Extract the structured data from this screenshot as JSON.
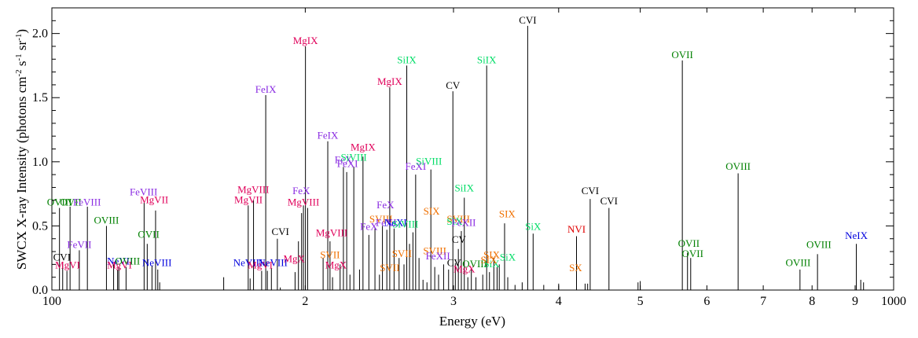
{
  "chart_data": {
    "type": "bar",
    "title": "",
    "xlabel": "Energy (eV)",
    "ylabel": "SWCX X-ray Intensity (photons cm-2 s-1 sr-1)",
    "ylabel_parts": {
      "prefix": "SWCX X-ray Intensity (photons cm",
      "exp1": "-2",
      "s": " s",
      "exp2": "-1",
      "sr": " sr",
      "exp3": "-1",
      "suffix": ")"
    },
    "x_scale": "log",
    "xlim": [
      100,
      1000
    ],
    "ylim": [
      0,
      2.2
    ],
    "grid": false,
    "x_ticks": [
      {
        "value": 100,
        "label": "100",
        "major": true
      },
      {
        "value": 200,
        "label": "2",
        "major": false
      },
      {
        "value": 300,
        "label": "3",
        "major": false
      },
      {
        "value": 400,
        "label": "4",
        "major": false
      },
      {
        "value": 500,
        "label": "5",
        "major": false
      },
      {
        "value": 600,
        "label": "6",
        "major": false
      },
      {
        "value": 700,
        "label": "7",
        "major": false
      },
      {
        "value": 800,
        "label": "8",
        "major": false
      },
      {
        "value": 900,
        "label": "9",
        "major": false
      },
      {
        "value": 1000,
        "label": "1000",
        "major": true
      }
    ],
    "y_ticks": [
      {
        "value": 0.0,
        "label": "0.0"
      },
      {
        "value": 0.5,
        "label": "0.5"
      },
      {
        "value": 1.0,
        "label": "1.0"
      },
      {
        "value": 1.5,
        "label": "1.5"
      },
      {
        "value": 2.0,
        "label": "2.0"
      }
    ],
    "element_colors": {
      "C": "#000000",
      "N": "#e00000",
      "O": "#008000",
      "Ne": "#0000dd",
      "Mg": "#e0005a",
      "Si": "#00dd66",
      "S": "#f07000",
      "Fe": "#8a2be2"
    },
    "lines": [
      {
        "x": 102.1,
        "y": 0.64
      },
      {
        "x": 103.0,
        "y": 0.21
      },
      {
        "x": 104.2,
        "y": 0.15
      },
      {
        "x": 105.1,
        "y": 0.65
      },
      {
        "x": 107.8,
        "y": 0.31
      },
      {
        "x": 110.2,
        "y": 0.65
      },
      {
        "x": 116.1,
        "y": 0.5
      },
      {
        "x": 118.4,
        "y": 0.2
      },
      {
        "x": 119.7,
        "y": 0.16
      },
      {
        "x": 120.1,
        "y": 0.18
      },
      {
        "x": 122.5,
        "y": 0.18
      },
      {
        "x": 128.7,
        "y": 0.68
      },
      {
        "x": 129.8,
        "y": 0.36
      },
      {
        "x": 131.5,
        "y": 0.19
      },
      {
        "x": 132.8,
        "y": 0.62
      },
      {
        "x": 133.6,
        "y": 0.16
      },
      {
        "x": 134.3,
        "y": 0.06
      },
      {
        "x": 160.0,
        "y": 0.1
      },
      {
        "x": 171.1,
        "y": 0.66
      },
      {
        "x": 172.0,
        "y": 0.09
      },
      {
        "x": 173.6,
        "y": 0.7
      },
      {
        "x": 177.5,
        "y": 0.15
      },
      {
        "x": 179.5,
        "y": 1.52
      },
      {
        "x": 180.3,
        "y": 0.15
      },
      {
        "x": 182.3,
        "y": 0.17
      },
      {
        "x": 185.3,
        "y": 0.4
      },
      {
        "x": 186.8,
        "y": 0.02
      },
      {
        "x": 194.5,
        "y": 0.14
      },
      {
        "x": 196.3,
        "y": 0.38
      },
      {
        "x": 198.0,
        "y": 0.6
      },
      {
        "x": 199.0,
        "y": 0.66
      },
      {
        "x": 200.1,
        "y": 1.9
      },
      {
        "x": 201.3,
        "y": 0.64
      },
      {
        "x": 210.0,
        "y": 0.25
      },
      {
        "x": 212.7,
        "y": 1.16
      },
      {
        "x": 214.0,
        "y": 0.38
      },
      {
        "x": 215.5,
        "y": 0.1
      },
      {
        "x": 220.0,
        "y": 0.2
      },
      {
        "x": 222.0,
        "y": 0.96
      },
      {
        "x": 224.0,
        "y": 0.92
      },
      {
        "x": 226.0,
        "y": 0.12
      },
      {
        "x": 228.4,
        "y": 0.96
      },
      {
        "x": 232.0,
        "y": 0.16
      },
      {
        "x": 234.2,
        "y": 1.04
      },
      {
        "x": 238.0,
        "y": 0.43
      },
      {
        "x": 242.0,
        "y": 0.48
      },
      {
        "x": 245.0,
        "y": 0.12
      },
      {
        "x": 247.0,
        "y": 0.5
      },
      {
        "x": 250.0,
        "y": 0.47
      },
      {
        "x": 252.0,
        "y": 1.58
      },
      {
        "x": 255.0,
        "y": 0.48
      },
      {
        "x": 258.5,
        "y": 0.25
      },
      {
        "x": 262.0,
        "y": 0.2
      },
      {
        "x": 264.0,
        "y": 1.75
      },
      {
        "x": 266.0,
        "y": 0.36
      },
      {
        "x": 268.5,
        "y": 0.45
      },
      {
        "x": 270.5,
        "y": 0.9
      },
      {
        "x": 273.0,
        "y": 0.25
      },
      {
        "x": 276.0,
        "y": 0.08
      },
      {
        "x": 279.0,
        "y": 0.06
      },
      {
        "x": 282.0,
        "y": 0.94
      },
      {
        "x": 285.0,
        "y": 0.18
      },
      {
        "x": 288.0,
        "y": 0.12
      },
      {
        "x": 292.0,
        "y": 0.2
      },
      {
        "x": 296.0,
        "y": 0.16
      },
      {
        "x": 299.5,
        "y": 1.55
      },
      {
        "x": 301.5,
        "y": 0.21
      },
      {
        "x": 304.0,
        "y": 0.32
      },
      {
        "x": 306.5,
        "y": 0.46
      },
      {
        "x": 309.0,
        "y": 0.72
      },
      {
        "x": 312.0,
        "y": 0.1
      },
      {
        "x": 315.0,
        "y": 0.16
      },
      {
        "x": 319.0,
        "y": 0.1
      },
      {
        "x": 325.0,
        "y": 0.12
      },
      {
        "x": 328.5,
        "y": 1.75
      },
      {
        "x": 331.0,
        "y": 0.14
      },
      {
        "x": 335.0,
        "y": 0.25
      },
      {
        "x": 338.0,
        "y": 0.18
      },
      {
        "x": 340.0,
        "y": 0.2
      },
      {
        "x": 345.0,
        "y": 0.52
      },
      {
        "x": 348.0,
        "y": 0.1
      },
      {
        "x": 355.0,
        "y": 0.04
      },
      {
        "x": 362.0,
        "y": 0.06
      },
      {
        "x": 367.5,
        "y": 2.06
      },
      {
        "x": 373.0,
        "y": 0.44
      },
      {
        "x": 384.0,
        "y": 0.04
      },
      {
        "x": 400.0,
        "y": 0.05
      },
      {
        "x": 420.0,
        "y": 0.42
      },
      {
        "x": 430.0,
        "y": 0.05
      },
      {
        "x": 433.0,
        "y": 0.05
      },
      {
        "x": 436.0,
        "y": 0.71
      },
      {
        "x": 459.0,
        "y": 0.64
      },
      {
        "x": 497.0,
        "y": 0.06
      },
      {
        "x": 500.0,
        "y": 0.07
      },
      {
        "x": 561.0,
        "y": 1.79
      },
      {
        "x": 569.0,
        "y": 0.29
      },
      {
        "x": 574.0,
        "y": 0.25
      },
      {
        "x": 653.5,
        "y": 0.91
      },
      {
        "x": 774.0,
        "y": 0.16
      },
      {
        "x": 812.0,
        "y": 0.28
      },
      {
        "x": 903.0,
        "y": 0.36
      },
      {
        "x": 914.0,
        "y": 0.08
      },
      {
        "x": 921.0,
        "y": 0.06
      }
    ],
    "line_labels": [
      {
        "text": "OVIII",
        "element": "O",
        "x": 102.1,
        "y": 0.64
      },
      {
        "text": "CVI",
        "element": "C",
        "x": 102.8,
        "y": 0.21
      },
      {
        "text": "MgVI",
        "element": "Mg",
        "x": 104.4,
        "y": 0.15
      },
      {
        "text": "OVII",
        "element": "O",
        "x": 105.3,
        "y": 0.64
      },
      {
        "text": "FeVIII",
        "element": "Fe",
        "x": 110.1,
        "y": 0.64
      },
      {
        "text": "FeVII",
        "element": "Fe",
        "x": 107.8,
        "y": 0.31
      },
      {
        "text": "OVIII",
        "element": "O",
        "x": 116.1,
        "y": 0.5
      },
      {
        "text": "NeVII",
        "element": "Ne",
        "x": 120.5,
        "y": 0.18
      },
      {
        "text": "MgVI",
        "element": "Mg",
        "x": 120.3,
        "y": 0.15
      },
      {
        "text": "OVIII",
        "element": "O",
        "x": 123.0,
        "y": 0.18
      },
      {
        "text": "FeVIII",
        "element": "Fe",
        "x": 128.5,
        "y": 0.72
      },
      {
        "text": "MgVII",
        "element": "Mg",
        "x": 132.3,
        "y": 0.66
      },
      {
        "text": "OVII",
        "element": "O",
        "x": 130.3,
        "y": 0.39
      },
      {
        "text": "NeVIII",
        "element": "Ne",
        "x": 133.3,
        "y": 0.17
      },
      {
        "text": "NeVIII",
        "element": "Ne",
        "x": 171.0,
        "y": 0.17
      },
      {
        "text": "MgVIII",
        "element": "Mg",
        "x": 173.5,
        "y": 0.74
      },
      {
        "text": "MgVII",
        "element": "Mg",
        "x": 171.2,
        "y": 0.66
      },
      {
        "text": "MgVI",
        "element": "Mg",
        "x": 176.8,
        "y": 0.15
      },
      {
        "text": "NeVIII",
        "element": "Ne",
        "x": 183.0,
        "y": 0.17
      },
      {
        "text": "FeIX",
        "element": "Fe",
        "x": 179.5,
        "y": 1.52
      },
      {
        "text": "CVI",
        "element": "C",
        "x": 186.8,
        "y": 0.41
      },
      {
        "text": "MgX",
        "element": "Mg",
        "x": 194.0,
        "y": 0.2
      },
      {
        "text": "FeX",
        "element": "Fe",
        "x": 197.8,
        "y": 0.73
      },
      {
        "text": "MgVIII",
        "element": "Mg",
        "x": 199.0,
        "y": 0.64
      },
      {
        "text": "MgIX",
        "element": "Mg",
        "x": 200.1,
        "y": 1.9
      },
      {
        "text": "FeIX",
        "element": "Fe",
        "x": 212.7,
        "y": 1.16
      },
      {
        "text": "MgVIII",
        "element": "Mg",
        "x": 215.0,
        "y": 0.4
      },
      {
        "text": "SVII",
        "element": "S",
        "x": 214.0,
        "y": 0.23
      },
      {
        "text": "MgX",
        "element": "Mg",
        "x": 217.5,
        "y": 0.15
      },
      {
        "text": "FeX",
        "element": "Fe",
        "x": 222.0,
        "y": 0.97
      },
      {
        "text": "FeXI",
        "element": "Fe",
        "x": 224.5,
        "y": 0.94
      },
      {
        "text": "SiVIII",
        "element": "Si",
        "x": 228.4,
        "y": 0.99
      },
      {
        "text": "MgIX",
        "element": "Mg",
        "x": 234.2,
        "y": 1.07
      },
      {
        "text": "FeX",
        "element": "Fe",
        "x": 238.0,
        "y": 0.45
      },
      {
        "text": "SVIII",
        "element": "S",
        "x": 246.0,
        "y": 0.51
      },
      {
        "text": "FeX",
        "element": "Fe",
        "x": 249.0,
        "y": 0.62
      },
      {
        "text": "FeXI",
        "element": "Fe",
        "x": 249.5,
        "y": 0.48
      },
      {
        "text": "NeXI",
        "element": "Ne",
        "x": 256.0,
        "y": 0.48
      },
      {
        "text": "SiVIII",
        "element": "Si",
        "x": 263.0,
        "y": 0.47
      },
      {
        "text": "SVII",
        "element": "S",
        "x": 260.5,
        "y": 0.24
      },
      {
        "text": "SVII",
        "element": "S",
        "x": 252.0,
        "y": 0.13
      },
      {
        "text": "MgIX",
        "element": "Mg",
        "x": 252.0,
        "y": 1.58
      },
      {
        "text": "SiIX",
        "element": "Si",
        "x": 264.0,
        "y": 1.75
      },
      {
        "text": "FeXI",
        "element": "Fe",
        "x": 270.5,
        "y": 0.92
      },
      {
        "text": "SiVIII",
        "element": "Si",
        "x": 280.5,
        "y": 0.96
      },
      {
        "text": "SIX",
        "element": "S",
        "x": 282.5,
        "y": 0.57
      },
      {
        "text": "SVIII",
        "element": "S",
        "x": 285.0,
        "y": 0.26
      },
      {
        "text": "FeXII",
        "element": "Fe",
        "x": 287.5,
        "y": 0.22
      },
      {
        "text": "CV",
        "element": "C",
        "x": 299.5,
        "y": 1.55
      },
      {
        "text": "SiIX",
        "element": "Si",
        "x": 309.0,
        "y": 0.75
      },
      {
        "text": "SVIII",
        "element": "S",
        "x": 304.0,
        "y": 0.51
      },
      {
        "text": "SiX",
        "element": "Si",
        "x": 301.0,
        "y": 0.49
      },
      {
        "text": "FeXII",
        "element": "Fe",
        "x": 308.5,
        "y": 0.48
      },
      {
        "text": "CV",
        "element": "C",
        "x": 304.5,
        "y": 0.35
      },
      {
        "text": "CV",
        "element": "C",
        "x": 300.5,
        "y": 0.17
      },
      {
        "text": "MgX",
        "element": "Mg",
        "x": 309.0,
        "y": 0.12
      },
      {
        "text": "OVIII",
        "element": "O",
        "x": 318.0,
        "y": 0.16
      },
      {
        "text": "SiIX",
        "element": "Si",
        "x": 328.5,
        "y": 1.75
      },
      {
        "text": "SIX",
        "element": "S",
        "x": 333.0,
        "y": 0.23
      },
      {
        "text": "SiX",
        "element": "Si",
        "x": 333.0,
        "y": 0.16
      },
      {
        "text": "SIX",
        "element": "S",
        "x": 347.5,
        "y": 0.55
      },
      {
        "text": "SiX",
        "element": "Si",
        "x": 348.0,
        "y": 0.21
      },
      {
        "text": "SIX",
        "element": "S",
        "x": 330.5,
        "y": 0.19
      },
      {
        "text": "SiX",
        "element": "Si",
        "x": 373.0,
        "y": 0.45
      },
      {
        "text": "CVI",
        "element": "C",
        "x": 367.5,
        "y": 2.06
      },
      {
        "text": "NVI",
        "element": "N",
        "x": 420.0,
        "y": 0.43
      },
      {
        "text": "SX",
        "element": "S",
        "x": 419.0,
        "y": 0.13
      },
      {
        "text": "CVI",
        "element": "C",
        "x": 436.0,
        "y": 0.73
      },
      {
        "text": "CVI",
        "element": "C",
        "x": 459.0,
        "y": 0.65
      },
      {
        "text": "OVII",
        "element": "O",
        "x": 561.0,
        "y": 1.79
      },
      {
        "text": "OVII",
        "element": "O",
        "x": 571.0,
        "y": 0.32
      },
      {
        "text": "OVII",
        "element": "O",
        "x": 577.0,
        "y": 0.24
      },
      {
        "text": "OVIII",
        "element": "O",
        "x": 653.5,
        "y": 0.92
      },
      {
        "text": "OVIII",
        "element": "O",
        "x": 770.0,
        "y": 0.17
      },
      {
        "text": "OVIII",
        "element": "O",
        "x": 815.0,
        "y": 0.31
      },
      {
        "text": "NeIX",
        "element": "Ne",
        "x": 903.0,
        "y": 0.38
      }
    ]
  }
}
